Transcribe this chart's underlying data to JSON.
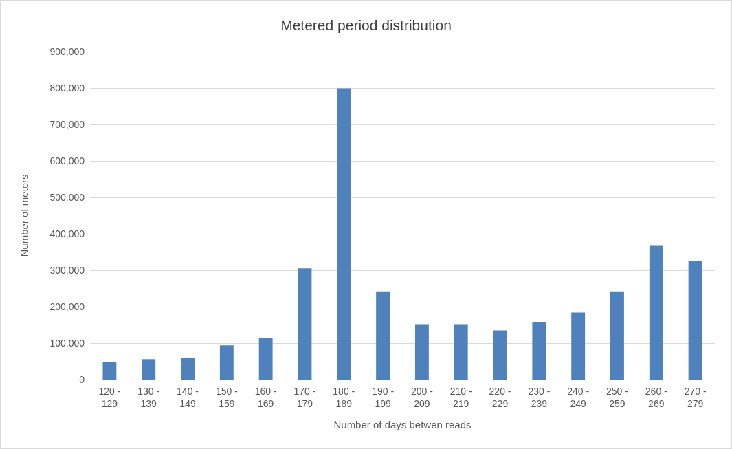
{
  "chart_data": {
    "type": "bar",
    "title": "Metered period distribution",
    "xlabel": "Number of days betwen reads",
    "ylabel": "Number of meters",
    "categories": [
      "120 - 129",
      "130 - 139",
      "140 - 149",
      "150 - 159",
      "160 - 169",
      "170 - 179",
      "180 - 189",
      "190 - 199",
      "200 - 209",
      "210 - 219",
      "220 - 229",
      "230 - 239",
      "240 - 249",
      "250 - 259",
      "260 - 269",
      "270 - 279"
    ],
    "values": [
      49000,
      56000,
      60000,
      94000,
      115000,
      305000,
      799000,
      242000,
      152000,
      152000,
      135000,
      158000,
      184000,
      242000,
      367000,
      325000
    ],
    "color": "#4f81bd",
    "ylim": [
      0,
      900000
    ],
    "yticks": [
      0,
      {
        "value": 100000,
        "label": "100,000"
      },
      {
        "value": 200000,
        "label": "200,000"
      },
      {
        "value": 300000,
        "label": "300,000"
      },
      {
        "value": 400000,
        "label": "400,000"
      },
      {
        "value": 500000,
        "label": "500,000"
      },
      {
        "value": 600000,
        "label": "600,000"
      },
      {
        "value": 700000,
        "label": "700,000"
      },
      {
        "value": 800000,
        "label": "800,000"
      },
      {
        "value": 900000,
        "label": "900,000"
      }
    ],
    "grid": "y"
  }
}
